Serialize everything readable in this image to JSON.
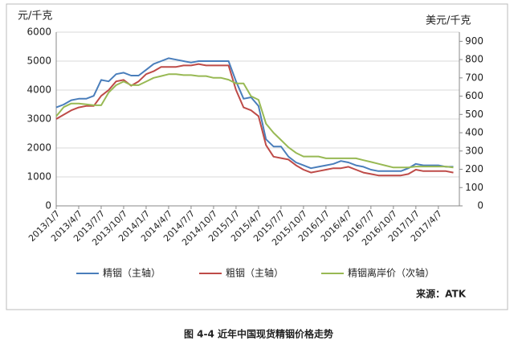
{
  "chart_data": {
    "type": "line",
    "caption": "图 4-4 近年中国现货精铟价格走势",
    "ylabel": "元/千克",
    "y2label": "美元/千克",
    "source": "来源：ATK",
    "categories": [
      "2013/1/7",
      null,
      null,
      "2013/4/7",
      null,
      null,
      "2013/7/7",
      null,
      null,
      "2013/10/7",
      null,
      null,
      "2014/1/7",
      null,
      null,
      "2014/4/7",
      null,
      null,
      "2014/7/7",
      null,
      null,
      "2014/10/7",
      null,
      null,
      "2015/1/7",
      null,
      null,
      "2015/4/7",
      null,
      null,
      "2015/7/7",
      null,
      null,
      "2015/10/7",
      null,
      null,
      "2016/1/7",
      null,
      null,
      "2016/4/7",
      null,
      null,
      "2016/7/7",
      null,
      null,
      "2016/10/7",
      null,
      null,
      "2017/1/7",
      null,
      null,
      "2017/4/7",
      null,
      null
    ],
    "series": [
      {
        "name": "精铟（主轴）",
        "color": "#4a7ebb",
        "axis": "y",
        "values": [
          3400,
          3500,
          3650,
          3700,
          3700,
          3800,
          4350,
          4300,
          4550,
          4600,
          4500,
          4500,
          4700,
          4900,
          5000,
          5100,
          5050,
          5000,
          4950,
          5000,
          5000,
          5000,
          5000,
          5000,
          4300,
          3700,
          3750,
          3450,
          2300,
          2050,
          2050,
          1700,
          1500,
          1400,
          1300,
          1350,
          1400,
          1450,
          1550,
          1500,
          1400,
          1350,
          1250,
          1200,
          1200,
          1200,
          1200,
          1300,
          1450,
          1400,
          1400,
          1400,
          1350,
          1350
        ]
      },
      {
        "name": "粗铟（主轴）",
        "color": "#be4b48",
        "axis": "y",
        "values": [
          3000,
          3150,
          3300,
          3400,
          3450,
          3450,
          3800,
          4000,
          4300,
          4350,
          4150,
          4300,
          4550,
          4650,
          4800,
          4800,
          4800,
          4850,
          4850,
          4900,
          4850,
          4850,
          4850,
          4850,
          4000,
          3400,
          3300,
          3100,
          2100,
          1700,
          1650,
          1600,
          1400,
          1250,
          1150,
          1200,
          1250,
          1300,
          1300,
          1350,
          1250,
          1150,
          1100,
          1050,
          1050,
          1050,
          1050,
          1100,
          1250,
          1200,
          1200,
          1200,
          1200,
          1150
        ]
      },
      {
        "name": "精铟离岸价（次轴）",
        "color": "#98b954",
        "axis": "y2",
        "values": [
          490,
          540,
          560,
          560,
          555,
          550,
          550,
          620,
          660,
          680,
          660,
          660,
          680,
          700,
          710,
          720,
          720,
          715,
          715,
          710,
          710,
          700,
          700,
          690,
          670,
          670,
          600,
          580,
          450,
          400,
          360,
          320,
          290,
          270,
          270,
          270,
          260,
          260,
          260,
          260,
          260,
          250,
          240,
          230,
          220,
          210,
          210,
          210,
          215,
          215,
          215,
          215,
          215,
          210
        ]
      }
    ],
    "ylim": [
      0,
      6000
    ],
    "yticks": [
      0,
      1000,
      2000,
      3000,
      4000,
      5000,
      6000
    ],
    "y2lim": [
      0,
      950
    ],
    "y2ticks": [
      0,
      100,
      200,
      300,
      400,
      500,
      600,
      700,
      800,
      900
    ],
    "grid": true
  }
}
